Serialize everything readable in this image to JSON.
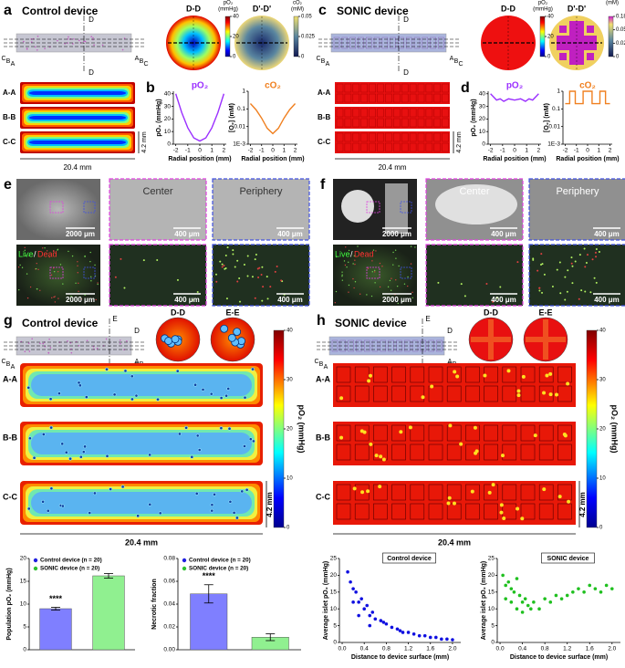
{
  "a": {
    "label": "a",
    "title": "Control device",
    "cut_top": "D",
    "cut_bottom": "D",
    "left_cuts": [
      "C",
      "B",
      "A"
    ],
    "right_cuts": [
      "A",
      "B",
      "C"
    ],
    "sections": [
      "A-A",
      "B-B",
      "C-C"
    ],
    "height": "4.2 mm",
    "length": "20.4 mm",
    "maps": [
      "D-D",
      "D'-D'"
    ],
    "bar1": {
      "title": [
        "pO₂",
        "(mmHg)"
      ],
      "ticks": [
        40,
        20,
        0
      ]
    },
    "bar2": {
      "title": [
        "cO₂",
        "(mM)"
      ],
      "ticks": [
        0.05,
        0.025,
        0
      ]
    },
    "sub": "b"
  },
  "c": {
    "label": "c",
    "title": "SONIC device",
    "cut_top": "D",
    "cut_bottom": "D",
    "left_cuts": [
      "C",
      "B",
      "A"
    ],
    "right_cuts": [
      "A",
      "B",
      "C"
    ],
    "sections": [
      "A-A",
      "B-B",
      "C-C"
    ],
    "height": "4.2 mm",
    "length": "20.4 mm",
    "maps": [
      "D-D",
      "D'-D'"
    ],
    "bar1": {
      "title": [
        "pO₂",
        "(mmHg)"
      ],
      "ticks": [
        40,
        20,
        0
      ]
    },
    "bar2": {
      "title": [
        "(mM)"
      ],
      "ticks": [
        0.185,
        0.05,
        0.025,
        0
      ]
    },
    "sub": "d"
  },
  "e": {
    "label": "e",
    "tiles": [
      "Center",
      "Periphery"
    ],
    "scale_big": "2000 μm",
    "scale_small": "400 μm",
    "live": "Live",
    "slash": "/",
    "dead": "Dead"
  },
  "f": {
    "label": "f",
    "tiles": [
      "Center",
      "Periphery"
    ],
    "scale_big": "2000 μm",
    "scale_small": "400 μm",
    "live": "Live",
    "slash": "/",
    "dead": "Dead"
  },
  "g": {
    "label": "g",
    "title": "Control device",
    "cut_top": "E",
    "cut_bottom": "E",
    "right_marks": [
      "D",
      "D"
    ],
    "left_cuts": [
      "C",
      "B",
      "A"
    ],
    "right_cuts": [
      "A",
      "B",
      "C"
    ],
    "maps": [
      "D-D",
      "E-E"
    ],
    "sections": [
      "A-A",
      "B-B",
      "C-C"
    ],
    "height": "4.2 mm",
    "length": "20.4 mm",
    "colorbar": {
      "title": "pO₂ (mmHg)",
      "ticks": [
        40,
        30,
        20,
        10,
        0
      ]
    }
  },
  "h": {
    "label": "h",
    "title": "SONIC device",
    "cut_top": "E",
    "cut_bottom": "E",
    "right_marks": [
      "D",
      "D"
    ],
    "left_cuts": [
      "C",
      "B",
      "A"
    ],
    "right_cuts": [
      "A",
      "B",
      "C"
    ],
    "maps": [
      "D-D",
      "E-E"
    ],
    "sections": [
      "A-A",
      "B-B",
      "C-C"
    ],
    "height": "4.2 mm",
    "length": "20.4 mm",
    "colorbar": {
      "title": "pO₂ (mmHg)",
      "ticks": [
        40,
        30,
        20,
        10,
        0
      ]
    }
  },
  "chart_data": [
    {
      "type": "line",
      "annotation": "pO₂",
      "xlabel": "Radial position (mm)",
      "ylabel": "pO₂ (mmHg)",
      "color": "#9b30ff",
      "x": [
        -2,
        -1.5,
        -1,
        -0.5,
        0,
        0.5,
        1,
        1.5,
        2
      ],
      "values": [
        40,
        25,
        13,
        5,
        2.5,
        5,
        13,
        25,
        40
      ],
      "xlim": [
        -2.2,
        2.2
      ],
      "xticks": [
        -2,
        -1,
        0,
        1,
        2
      ],
      "ylim": [
        0,
        42
      ],
      "yticks": [
        0,
        10,
        20,
        30,
        40
      ]
    },
    {
      "type": "line",
      "annotation": "cO₂",
      "xlabel": "Radial position (mm)",
      "ylabel": "[O₂] (mM)",
      "color": "#f08020",
      "log": true,
      "x": [
        -2,
        -1.5,
        -1,
        -0.5,
        0,
        0.5,
        1,
        1.5,
        2
      ],
      "values": [
        0.2,
        0.09,
        0.03,
        0.008,
        0.004,
        0.008,
        0.03,
        0.09,
        0.2
      ],
      "xlim": [
        -2.2,
        2.2
      ],
      "xticks": [
        -2,
        -1,
        0,
        1,
        2
      ],
      "ylim": [
        0.001,
        1
      ],
      "yticks": [
        {
          "value": 0.001,
          "label": "1E-3"
        },
        0.01,
        0.1,
        1
      ]
    },
    {
      "type": "line",
      "annotation": "pO₂",
      "xlabel": "Radial position (mm)",
      "ylabel": "pO₂ (mmHg)",
      "color": "#9b30ff",
      "x": [
        -2,
        -1.5,
        -1.2,
        -0.9,
        -0.5,
        0,
        0.5,
        0.9,
        1.2,
        1.5,
        2
      ],
      "values": [
        40,
        35,
        36,
        34,
        36,
        35,
        36,
        34,
        36,
        35,
        40
      ],
      "xlim": [
        -2.2,
        2.2
      ],
      "xticks": [
        -2,
        -1,
        0,
        1,
        2
      ],
      "ylim": [
        0,
        42
      ],
      "yticks": [
        0,
        10,
        20,
        30,
        40
      ]
    },
    {
      "type": "line",
      "annotation": "cO₂",
      "xlabel": "Radial position (mm)",
      "ylabel": "[O₂] (mM)",
      "color": "#f08020",
      "log": true,
      "x": [
        -2,
        -1.6,
        -1.6,
        -1.1,
        -1.1,
        -0.4,
        -0.4,
        0.4,
        0.4,
        1.1,
        1.1,
        1.6,
        1.6,
        2
      ],
      "values": [
        0.2,
        0.2,
        1,
        1,
        0.2,
        0.2,
        1,
        1,
        0.2,
        0.2,
        1,
        1,
        0.2,
        0.2
      ],
      "xlim": [
        -2.2,
        2.2
      ],
      "xticks": [
        -2,
        -1,
        0,
        1,
        2
      ],
      "ylim": [
        0.001,
        1
      ],
      "yticks": [
        {
          "value": 0.001,
          "label": "1E-3"
        },
        0.01,
        0.1,
        1
      ]
    },
    {
      "type": "bar",
      "ylabel": "Population pO₂ (mmHg)",
      "annotation": "****",
      "series": [
        {
          "name": "Control device (n = 20)",
          "color": "#7f7fff",
          "dot": "#2020e0",
          "values": [
            9.0
          ],
          "errors": [
            0.3
          ]
        },
        {
          "name": "SONIC device (n = 20)",
          "color": "#90f090",
          "dot": "#30c030",
          "values": [
            16.2
          ],
          "errors": [
            0.5
          ]
        }
      ],
      "ylim": [
        0,
        20
      ],
      "yticks": [
        0,
        5,
        10,
        15,
        20
      ]
    },
    {
      "type": "bar",
      "ylabel": "Necrotic fraction",
      "annotation": "****",
      "series": [
        {
          "name": "Control device (n = 20)",
          "color": "#7f7fff",
          "dot": "#2020e0",
          "values": [
            0.049
          ],
          "errors": [
            0.008
          ]
        },
        {
          "name": "SONIC device (n = 20)",
          "color": "#90f090",
          "dot": "#30c030",
          "values": [
            0.011
          ],
          "errors": [
            0.003
          ]
        }
      ],
      "ylim": [
        0,
        0.08
      ],
      "yticks": [
        {
          "value": 0,
          "label": "0.00"
        },
        {
          "value": 0.02,
          "label": "0.02"
        },
        {
          "value": 0.04,
          "label": "0.04"
        },
        {
          "value": 0.06,
          "label": "0.06"
        },
        {
          "value": 0.08,
          "label": "0.08"
        }
      ]
    },
    {
      "type": "scatter",
      "title": "Control device",
      "xlabel": "Distance to device surface (mm)",
      "ylabel": "Average islet pO₂ (mmHg)",
      "color": "#1010e0",
      "x": [
        0.1,
        0.15,
        0.2,
        0.25,
        0.3,
        0.35,
        0.4,
        0.45,
        0.5,
        0.55,
        0.6,
        0.7,
        0.75,
        0.8,
        0.9,
        1.0,
        1.05,
        1.1,
        1.2,
        1.3,
        1.4,
        1.5,
        1.6,
        1.7,
        1.8,
        1.9,
        2.0,
        0.2,
        0.3,
        0.5
      ],
      "values": [
        21,
        18,
        16,
        15,
        12,
        13,
        10,
        11,
        8,
        9,
        7,
        6.5,
        6,
        5.5,
        4.5,
        4,
        3.5,
        3,
        3,
        2.5,
        2,
        2,
        1.5,
        1.5,
        1,
        1,
        0.8,
        12,
        8,
        5
      ],
      "xlim": [
        -0.05,
        2.15
      ],
      "xticks": [
        {
          "value": 0,
          "label": "0.0"
        },
        {
          "value": 0.4,
          "label": "0.4"
        },
        {
          "value": 0.8,
          "label": "0.8"
        },
        {
          "value": 1.2,
          "label": "1.2"
        },
        {
          "value": 1.6,
          "label": "1.6"
        },
        {
          "value": 2,
          "label": "2.0"
        }
      ],
      "ylim": [
        0,
        25
      ],
      "yticks": [
        0,
        5,
        10,
        15,
        20,
        25
      ]
    },
    {
      "type": "scatter",
      "title": "SONIC device",
      "xlabel": "Distance to device surface (mm)",
      "ylabel": "Average islet pO₂ (mmHg)",
      "color": "#20c020",
      "x": [
        0.05,
        0.1,
        0.15,
        0.2,
        0.25,
        0.3,
        0.35,
        0.4,
        0.45,
        0.5,
        0.55,
        0.6,
        0.7,
        0.8,
        0.9,
        1.0,
        1.1,
        1.2,
        1.3,
        1.4,
        1.5,
        1.6,
        1.7,
        1.8,
        1.9,
        2.0,
        0.1,
        0.2,
        0.3,
        0.4
      ],
      "values": [
        20,
        17,
        18,
        16,
        15,
        19,
        14,
        12,
        13,
        11,
        10,
        12,
        10,
        13,
        12,
        14,
        13,
        14,
        15,
        16,
        15,
        17,
        16,
        15,
        17,
        16,
        13,
        12,
        10,
        9
      ],
      "xlim": [
        -0.05,
        2.15
      ],
      "xticks": [
        {
          "value": 0,
          "label": "0.0"
        },
        {
          "value": 0.4,
          "label": "0.4"
        },
        {
          "value": 0.8,
          "label": "0.8"
        },
        {
          "value": 1.2,
          "label": "1.2"
        },
        {
          "value": 1.6,
          "label": "1.6"
        },
        {
          "value": 2,
          "label": "2.0"
        }
      ],
      "ylim": [
        0,
        25
      ],
      "yticks": [
        0,
        5,
        10,
        15,
        20,
        25
      ]
    }
  ]
}
